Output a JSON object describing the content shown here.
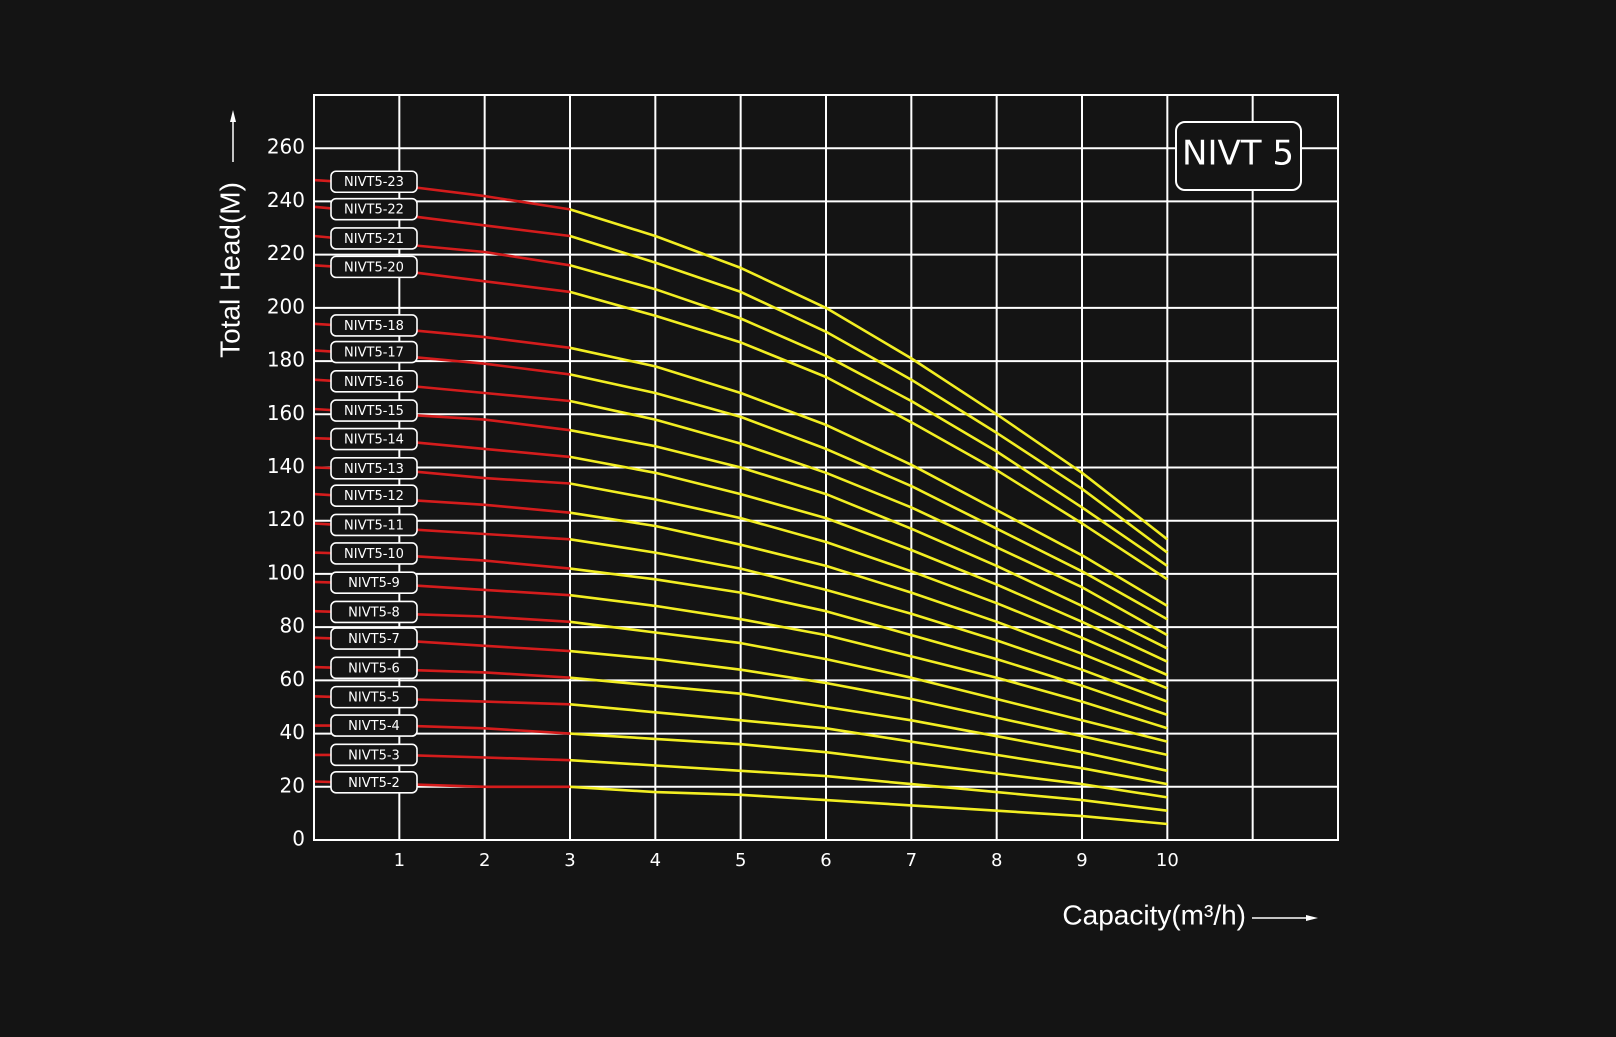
{
  "chart_data": {
    "type": "line",
    "title": "NIVT 5",
    "xlabel": "Capacity(m³/h)",
    "ylabel": "Total Head(M)",
    "x": [
      0,
      1,
      2,
      3,
      4,
      5,
      6,
      7,
      8,
      9,
      10
    ],
    "xlim": [
      0,
      12
    ],
    "ylim": [
      0,
      280
    ],
    "xticks": [
      1,
      2,
      3,
      4,
      5,
      6,
      7,
      8,
      9,
      10
    ],
    "xgrid_unlabeled": [
      11
    ],
    "yticks": [
      0,
      20,
      40,
      60,
      80,
      100,
      120,
      140,
      160,
      180,
      200,
      220,
      240,
      260
    ],
    "grid": true,
    "color": "#f2ee22",
    "low_flow_color": "#d41c1c",
    "split_x": 3,
    "series": [
      {
        "name": "NIVT5-2",
        "values": [
          22,
          21,
          20,
          20,
          18,
          17,
          15,
          13,
          11,
          9,
          6
        ]
      },
      {
        "name": "NIVT5-3",
        "values": [
          32,
          32,
          31,
          30,
          28,
          26,
          24,
          21,
          18,
          15,
          11
        ]
      },
      {
        "name": "NIVT5-4",
        "values": [
          43,
          43,
          42,
          40,
          38,
          36,
          33,
          29,
          25,
          21,
          16
        ]
      },
      {
        "name": "NIVT5-5",
        "values": [
          54,
          53,
          52,
          51,
          48,
          45,
          42,
          37,
          32,
          27,
          21
        ]
      },
      {
        "name": "NIVT5-6",
        "values": [
          65,
          64,
          63,
          61,
          58,
          55,
          50,
          45,
          39,
          33,
          26
        ]
      },
      {
        "name": "NIVT5-7",
        "values": [
          76,
          75,
          73,
          71,
          68,
          64,
          59,
          53,
          46,
          39,
          32
        ]
      },
      {
        "name": "NIVT5-8",
        "values": [
          86,
          85,
          84,
          82,
          78,
          74,
          68,
          61,
          53,
          45,
          37
        ]
      },
      {
        "name": "NIVT5-9",
        "values": [
          97,
          96,
          94,
          92,
          88,
          83,
          77,
          69,
          61,
          52,
          42
        ]
      },
      {
        "name": "NIVT5-10",
        "values": [
          108,
          107,
          105,
          102,
          98,
          93,
          86,
          77,
          68,
          58,
          47
        ]
      },
      {
        "name": "NIVT5-11",
        "values": [
          119,
          117,
          115,
          113,
          108,
          102,
          94,
          85,
          75,
          64,
          52
        ]
      },
      {
        "name": "NIVT5-12",
        "values": [
          130,
          128,
          126,
          123,
          118,
          111,
          103,
          93,
          82,
          70,
          57
        ]
      },
      {
        "name": "NIVT5-13",
        "values": [
          140,
          139,
          136,
          134,
          128,
          121,
          112,
          101,
          89,
          76,
          62
        ]
      },
      {
        "name": "NIVT5-14",
        "values": [
          151,
          150,
          147,
          144,
          138,
          130,
          121,
          109,
          96,
          82,
          67
        ]
      },
      {
        "name": "NIVT5-15",
        "values": [
          162,
          160,
          158,
          154,
          148,
          140,
          130,
          117,
          103,
          88,
          72
        ]
      },
      {
        "name": "NIVT5-16",
        "values": [
          173,
          171,
          168,
          165,
          158,
          149,
          138,
          125,
          110,
          95,
          77
        ]
      },
      {
        "name": "NIVT5-17",
        "values": [
          184,
          182,
          179,
          175,
          168,
          159,
          147,
          133,
          117,
          101,
          83
        ]
      },
      {
        "name": "NIVT5-18",
        "values": [
          194,
          192,
          189,
          185,
          178,
          168,
          156,
          141,
          124,
          107,
          88
        ]
      },
      {
        "name": "NIVT5-20",
        "values": [
          216,
          214,
          210,
          206,
          197,
          187,
          174,
          157,
          139,
          119,
          98
        ]
      },
      {
        "name": "NIVT5-21",
        "values": [
          227,
          224,
          221,
          216,
          207,
          196,
          182,
          165,
          146,
          125,
          103
        ]
      },
      {
        "name": "NIVT5-22",
        "values": [
          238,
          235,
          231,
          227,
          217,
          206,
          191,
          173,
          153,
          132,
          108
        ]
      },
      {
        "name": "NIVT5-23",
        "values": [
          248,
          246,
          242,
          237,
          227,
          215,
          200,
          181,
          160,
          138,
          113
        ]
      }
    ]
  }
}
